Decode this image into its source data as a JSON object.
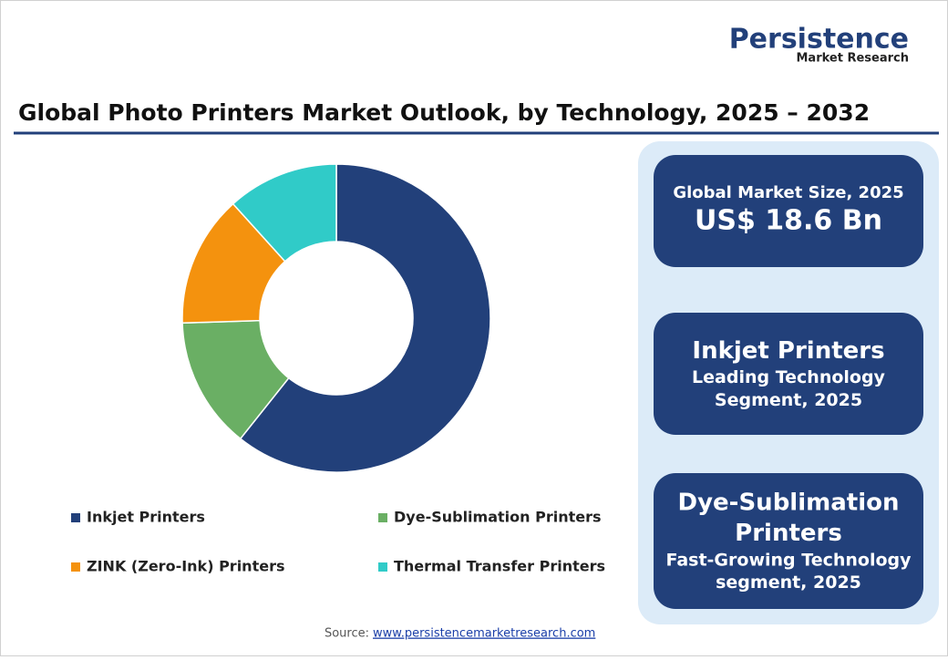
{
  "chart_data": {
    "type": "pie",
    "donut": true,
    "title": "Global Photo Printers Market Outlook, by Technology, 2025 – 2032",
    "categories": [
      "Inkjet Printers",
      "Dye-Sublimation Printers",
      "ZINK (Zero-Ink) Printers",
      "Thermal Transfer Printers"
    ],
    "values": [
      60.7,
      13.8,
      13.8,
      11.7
    ],
    "colors": [
      "#22407a",
      "#6aaf64",
      "#f4920e",
      "#30cbc8"
    ]
  },
  "logo": {
    "name": "Persistence",
    "tagline": "Market Research"
  },
  "cards": [
    {
      "head": [
        "Global Market Size, 2025"
      ],
      "sub": [
        "US$ 18.6 Bn"
      ]
    },
    {
      "head": [
        "Inkjet Printers"
      ],
      "sub": [
        "Leading Technology",
        "Segment, 2025"
      ]
    },
    {
      "head": [
        "Dye-Sublimation",
        "Printers"
      ],
      "sub": [
        "Fast-Growing Technology",
        "segment, 2025"
      ]
    }
  ],
  "source": {
    "label": "Source:",
    "link": "www.persistencemarketresearch.com"
  }
}
